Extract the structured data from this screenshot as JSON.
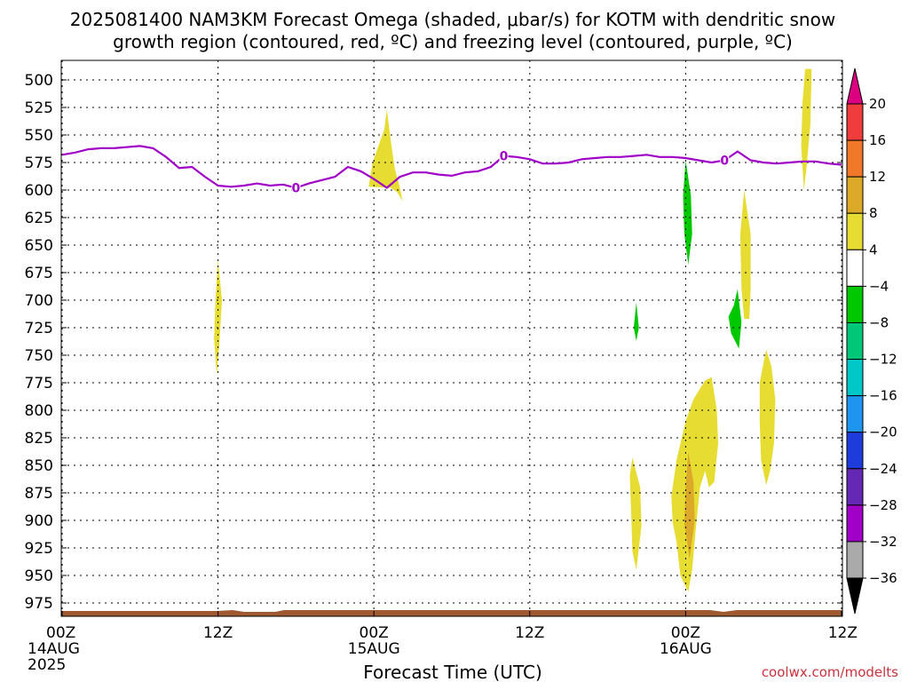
{
  "chart_data": {
    "type": "contour",
    "title_line1": "2025081400 NAM3KM Forecast Omega (shaded, μbar/s) for KOTM with dendritic snow",
    "title_line2": "growth region (contoured, red, ºC) and freezing level (contoured, purple, ºC)",
    "xlabel": "Forecast Time (UTC)",
    "watermark": "coolwx.com/modelts",
    "xlim": [
      0,
      60
    ],
    "ylim": [
      490,
      990
    ],
    "y_inverted": true,
    "grid": true,
    "y_ticks": [
      500,
      525,
      550,
      575,
      600,
      625,
      650,
      675,
      700,
      725,
      750,
      775,
      800,
      825,
      850,
      875,
      900,
      925,
      950,
      975
    ],
    "x_ticks": [
      {
        "h": 0,
        "line1": "00Z",
        "line2": "14AUG",
        "line3": "2025"
      },
      {
        "h": 12,
        "line1": "12Z",
        "line2": "",
        "line3": ""
      },
      {
        "h": 24,
        "line1": "00Z",
        "line2": "15AUG",
        "line3": ""
      },
      {
        "h": 36,
        "line1": "12Z",
        "line2": "",
        "line3": ""
      },
      {
        "h": 48,
        "line1": "00Z",
        "line2": "16AUG",
        "line3": ""
      },
      {
        "h": 60,
        "line1": "12Z",
        "line2": "",
        "line3": ""
      }
    ],
    "freezing_level": {
      "label": "0",
      "color": "#a000c8",
      "label_hours": [
        18,
        34,
        51
      ],
      "points": [
        [
          0,
          568
        ],
        [
          1,
          566
        ],
        [
          2,
          563
        ],
        [
          3,
          562
        ],
        [
          4,
          562
        ],
        [
          5,
          561
        ],
        [
          6,
          560
        ],
        [
          7,
          562
        ],
        [
          8,
          570
        ],
        [
          9,
          580
        ],
        [
          10,
          579
        ],
        [
          11,
          588
        ],
        [
          12,
          596
        ],
        [
          13,
          597
        ],
        [
          14,
          596
        ],
        [
          15,
          594
        ],
        [
          16,
          596
        ],
        [
          17,
          595
        ],
        [
          18,
          598
        ],
        [
          19,
          594
        ],
        [
          20,
          591
        ],
        [
          21,
          588
        ],
        [
          22,
          579
        ],
        [
          23,
          583
        ],
        [
          24,
          590
        ],
        [
          25,
          598
        ],
        [
          26,
          588
        ],
        [
          27,
          584
        ],
        [
          28,
          584
        ],
        [
          29,
          586
        ],
        [
          30,
          587
        ],
        [
          31,
          584
        ],
        [
          32,
          583
        ],
        [
          33,
          579
        ],
        [
          34,
          569
        ],
        [
          35,
          570
        ],
        [
          36,
          572
        ],
        [
          37,
          576
        ],
        [
          38,
          576
        ],
        [
          39,
          575
        ],
        [
          40,
          572
        ],
        [
          41,
          571
        ],
        [
          42,
          570
        ],
        [
          43,
          570
        ],
        [
          44,
          569
        ],
        [
          45,
          568
        ],
        [
          46,
          570
        ],
        [
          47,
          570
        ],
        [
          48,
          571
        ],
        [
          49,
          573
        ],
        [
          50,
          575
        ],
        [
          51,
          573
        ],
        [
          52,
          565
        ],
        [
          53,
          573
        ],
        [
          54,
          575
        ],
        [
          55,
          576
        ],
        [
          56,
          575
        ],
        [
          57,
          574
        ],
        [
          58,
          574
        ],
        [
          59,
          576
        ],
        [
          60,
          577
        ]
      ]
    },
    "omega_areas": [
      {
        "level": "4 to 8",
        "color": "#e6dc32",
        "points": [
          [
            12.0,
            663
          ],
          [
            12.3,
            700
          ],
          [
            12.1,
            740
          ],
          [
            11.9,
            768
          ],
          [
            11.7,
            735
          ],
          [
            11.8,
            700
          ]
        ]
      },
      {
        "level": "4 to 8",
        "color": "#e6dc32",
        "points": [
          [
            23.6,
            597
          ],
          [
            23.9,
            575
          ],
          [
            24.8,
            545
          ],
          [
            25.0,
            527
          ],
          [
            25.3,
            555
          ],
          [
            25.6,
            580
          ],
          [
            26.0,
            598
          ],
          [
            26.2,
            610
          ],
          [
            25.8,
            602
          ],
          [
            25.3,
            598
          ]
        ]
      },
      {
        "level": "4 to 8",
        "color": "#e6dc32",
        "points": [
          [
            43.9,
            843
          ],
          [
            44.5,
            870
          ],
          [
            44.6,
            905
          ],
          [
            44.2,
            945
          ],
          [
            43.9,
            928
          ],
          [
            43.8,
            890
          ],
          [
            43.7,
            860
          ]
        ]
      },
      {
        "level": "4 to 8",
        "color": "#e6dc32",
        "points": [
          [
            46.9,
            878
          ],
          [
            47.3,
            845
          ],
          [
            48.0,
            810
          ],
          [
            48.6,
            790
          ],
          [
            49.5,
            773
          ],
          [
            50.0,
            770
          ],
          [
            50.4,
            800
          ],
          [
            50.5,
            830
          ],
          [
            50.2,
            865
          ],
          [
            49.8,
            870
          ],
          [
            49.5,
            855
          ],
          [
            49.1,
            870
          ],
          [
            48.8,
            905
          ],
          [
            48.5,
            945
          ],
          [
            48.2,
            965
          ],
          [
            47.6,
            950
          ],
          [
            47.3,
            920
          ],
          [
            47.0,
            902
          ]
        ]
      },
      {
        "level": "4 to 8",
        "color": "#e6dc32",
        "points": [
          [
            52.5,
            600
          ],
          [
            53.0,
            640
          ],
          [
            53.0,
            690
          ],
          [
            52.9,
            717
          ],
          [
            52.5,
            717
          ],
          [
            52.3,
            690
          ],
          [
            52.2,
            640
          ]
        ]
      },
      {
        "level": "4 to 8",
        "color": "#e6dc32",
        "points": [
          [
            53.7,
            775
          ],
          [
            54.2,
            745
          ],
          [
            54.6,
            760
          ],
          [
            54.9,
            790
          ],
          [
            54.8,
            830
          ],
          [
            54.5,
            855
          ],
          [
            54.2,
            868
          ],
          [
            53.8,
            845
          ],
          [
            53.7,
            810
          ]
        ]
      },
      {
        "level": "4 to 8",
        "color": "#e6dc32",
        "points": [
          [
            57.2,
            490
          ],
          [
            57.7,
            490
          ],
          [
            57.6,
            540
          ],
          [
            57.3,
            580
          ],
          [
            57.1,
            600
          ],
          [
            56.9,
            560
          ],
          [
            57.0,
            520
          ]
        ]
      },
      {
        "level": "8 to 12",
        "color": "#dcaa28",
        "points": [
          [
            48.2,
            838
          ],
          [
            48.6,
            865
          ],
          [
            48.7,
            900
          ],
          [
            48.3,
            935
          ],
          [
            47.9,
            903
          ],
          [
            48.0,
            870
          ]
        ]
      },
      {
        "level": "-4 to -8",
        "color": "#00c800",
        "points": [
          [
            48.0,
            573
          ],
          [
            48.4,
            605
          ],
          [
            48.5,
            640
          ],
          [
            48.2,
            668
          ],
          [
            47.9,
            640
          ],
          [
            47.8,
            605
          ]
        ]
      },
      {
        "level": "-4 to -8",
        "color": "#00c800",
        "points": [
          [
            44.2,
            702
          ],
          [
            44.4,
            725
          ],
          [
            44.2,
            737
          ],
          [
            44.0,
            725
          ]
        ]
      },
      {
        "level": "-4 to -8",
        "color": "#00c800",
        "points": [
          [
            52.0,
            690
          ],
          [
            52.3,
            720
          ],
          [
            52.1,
            744
          ],
          [
            51.5,
            730
          ],
          [
            51.3,
            715
          ],
          [
            51.7,
            705
          ]
        ]
      }
    ],
    "colorbar": {
      "labels": [
        "20",
        "16",
        "12",
        "8",
        "4",
        "−4",
        "−8",
        "−12",
        "−16",
        "−20",
        "−24",
        "−28",
        "−32",
        "−36"
      ],
      "colors": [
        "#dc0080",
        "#f03c3c",
        "#f07828",
        "#dcaa28",
        "#e6dc32",
        "#ffffff",
        "#00c800",
        "#00c878",
        "#00c8c8",
        "#1e96f0",
        "#1e3cdc",
        "#6428b4",
        "#a000c8",
        "#aaaaaa",
        "#000000"
      ]
    },
    "ground_color": "#9f5a32"
  }
}
